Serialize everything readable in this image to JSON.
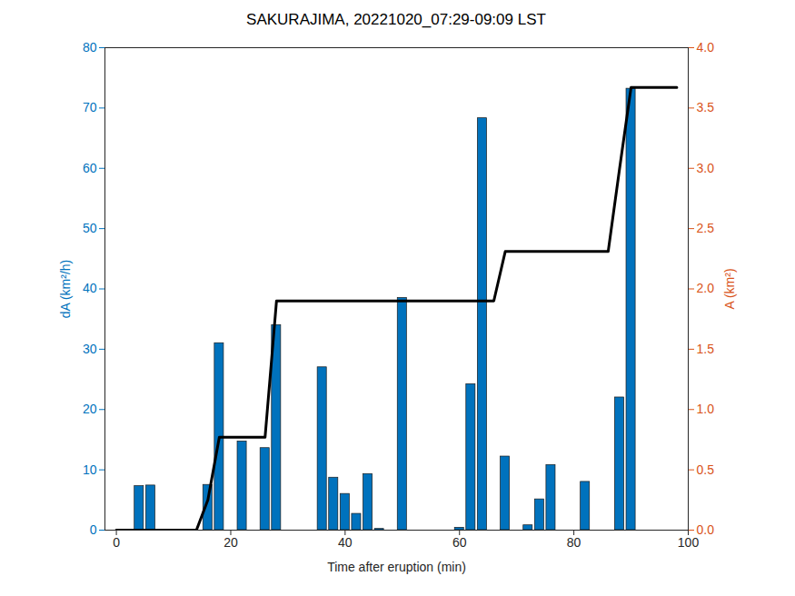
{
  "chart_data": {
    "type": "bar",
    "title": "SAKURAJIMA, 20221020_07:29-09:09 LST",
    "x_label": "Time after eruption (min)",
    "y_label": "dA (km²/h)",
    "y2_label": "A (km²)",
    "xlim": [
      -2,
      100
    ],
    "xticks": [
      0,
      20,
      40,
      60,
      80,
      100
    ],
    "ylim": [
      0,
      80
    ],
    "yticks": [
      0,
      10,
      20,
      30,
      40,
      50,
      60,
      70,
      80
    ],
    "y2lim": [
      0,
      4
    ],
    "y2ticks": [
      0,
      0.5,
      1,
      1.5,
      2,
      2.5,
      3,
      3.5,
      4
    ],
    "y_color": "#0072BD",
    "y2_color": "#D95319",
    "series": [
      {
        "type": "bar",
        "color": "#0072BD",
        "x": [
          4,
          6,
          16,
          18,
          22,
          26,
          28,
          36,
          38,
          40,
          42,
          44,
          46,
          50,
          60,
          62,
          64,
          68,
          72,
          74,
          76,
          82,
          88,
          90
        ],
        "values": [
          7.3,
          7.4,
          7.5,
          31,
          14.7,
          13.6,
          34,
          27,
          8.7,
          6,
          2.7,
          9.3,
          0.2,
          38.5,
          0.4,
          24.2,
          68.3,
          12.2,
          0.8,
          5.1,
          10.8,
          8,
          22,
          73.2
        ]
      },
      {
        "type": "line",
        "color": "#000000",
        "axis": "y2",
        "x": [
          0,
          14,
          16,
          18,
          26,
          28,
          66,
          68,
          86,
          88,
          90,
          98
        ],
        "values": [
          0,
          0,
          0.25,
          0.77,
          0.77,
          1.9,
          1.9,
          2.31,
          2.31,
          3.0,
          3.67,
          3.67
        ]
      }
    ]
  }
}
